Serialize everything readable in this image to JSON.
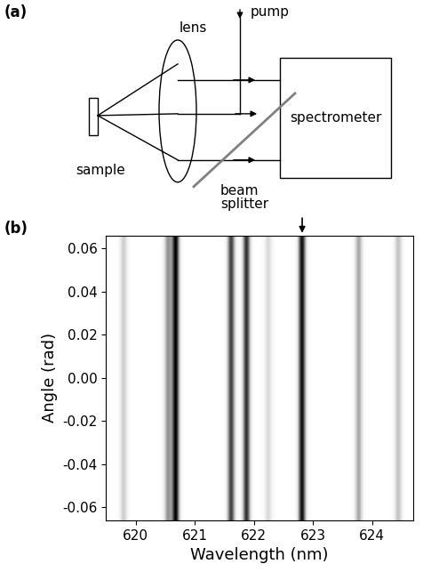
{
  "diagram": {
    "label": "(a)",
    "nodes": {
      "sample": "sample",
      "lens": "lens",
      "pump": "pump",
      "beam_splitter": "beam\nsplitter",
      "spectrometer": "spectrometer"
    }
  },
  "chart_data": {
    "type": "heatmap",
    "label": "(b)",
    "x_label": "Wavelength (nm)",
    "y_label": "Angle (rad)",
    "xlim": [
      619.5,
      624.7
    ],
    "ylim": [
      -0.066,
      0.066
    ],
    "xticks": [
      620,
      621,
      622,
      623,
      624
    ],
    "yticks": [
      -0.06,
      -0.04,
      -0.02,
      {
        "value": 0.0,
        "label": "0.00"
      },
      0.02,
      0.04,
      0.06
    ],
    "lines": [
      {
        "wavelength": 619.8,
        "intensity": 0.3
      },
      {
        "wavelength": 620.55,
        "intensity": 0.5
      },
      {
        "wavelength": 620.68,
        "intensity": 1.0
      },
      {
        "wavelength": 621.62,
        "intensity": 0.8
      },
      {
        "wavelength": 621.88,
        "intensity": 0.85
      },
      {
        "wavelength": 622.25,
        "intensity": 0.25
      },
      {
        "wavelength": 622.82,
        "intensity": 0.95
      },
      {
        "wavelength": 623.78,
        "intensity": 0.45
      },
      {
        "wavelength": 624.45,
        "intensity": 0.35
      }
    ],
    "arrow_at": 622.82
  }
}
